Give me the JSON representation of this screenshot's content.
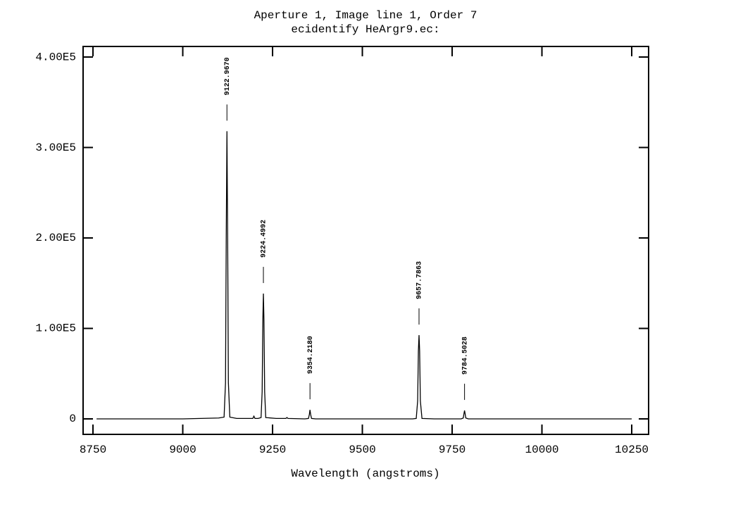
{
  "chart_data": {
    "type": "line",
    "title": "Aperture 1, Image line 1, Order 7",
    "subtitle": "ecidentify HeArgr9.ec:",
    "x_label": "Wavelength (angstroms)",
    "color": "#000000",
    "x": [
      8760,
      8800,
      8900,
      9000,
      9100,
      9115,
      9119,
      9121,
      9123,
      9125,
      9127,
      9131,
      9150,
      9195,
      9198,
      9201,
      9210,
      9218,
      9221,
      9223,
      9224.5,
      9226,
      9228,
      9231,
      9260,
      9287,
      9290,
      9293,
      9340,
      9350,
      9352.5,
      9354.2,
      9356,
      9358.5,
      9370,
      9500,
      9640,
      9650,
      9654,
      9656,
      9657.8,
      9659.5,
      9661.5,
      9666,
      9700,
      9775,
      9781,
      9783,
      9784.5,
      9786,
      9788,
      9795,
      9900,
      10000,
      10100,
      10250
    ],
    "values": [
      0,
      0,
      0,
      0,
      1000,
      2000,
      40000,
      200000,
      318000,
      200000,
      40000,
      2000,
      500,
      500,
      3000,
      500,
      500,
      1500,
      30000,
      110000,
      138500,
      110000,
      30000,
      1500,
      500,
      500,
      1500,
      500,
      0,
      500,
      5000,
      10000,
      5000,
      500,
      0,
      0,
      0,
      500,
      20000,
      75000,
      92600,
      75000,
      20000,
      500,
      0,
      0,
      1000,
      6000,
      9300,
      6000,
      1000,
      0,
      0,
      0,
      0,
      0
    ],
    "xlim": [
      8722.5,
      10297
    ],
    "ylim": [
      -17100,
      411700
    ],
    "xticks": [
      8750,
      9000,
      9250,
      9500,
      9750,
      10000,
      10250
    ],
    "yticks": [
      0,
      {
        "value": 100000,
        "label": "1.00E5"
      },
      {
        "value": 200000,
        "label": "2.00E5"
      },
      {
        "value": 300000,
        "label": "3.00E5"
      },
      {
        "value": 400000,
        "label": "4.00E5"
      }
    ],
    "annotations": [
      {
        "x": 9122.967,
        "label": "9122.9670"
      },
      {
        "x": 9224.4992,
        "label": "9224.4992"
      },
      {
        "x": 9354.218,
        "label": "9354.2180"
      },
      {
        "x": 9657.7863,
        "label": "9657.7863"
      },
      {
        "x": 9784.5028,
        "label": "9784.5028"
      }
    ]
  }
}
